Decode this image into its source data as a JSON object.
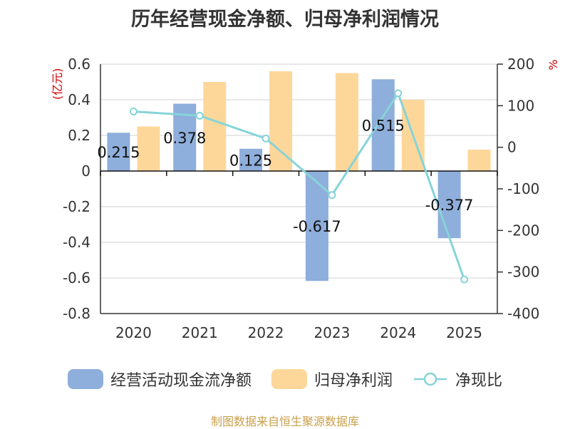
{
  "chart_data": {
    "type": "bar+line",
    "title": "历年经营现金净额、归母净利润情况",
    "categories": [
      "2020",
      "2021",
      "2022",
      "2023",
      "2024",
      "2025"
    ],
    "series": [
      {
        "name": "经营活动现金流净额",
        "type": "bar",
        "axis": "left",
        "color": "#8eaedb",
        "values": [
          0.215,
          0.378,
          0.125,
          -0.617,
          0.515,
          -0.377
        ],
        "labels": [
          "0.215",
          "0.378",
          "0.125",
          "-0.617",
          "0.515",
          "-0.377"
        ]
      },
      {
        "name": "归母净利润",
        "type": "bar",
        "axis": "left",
        "color": "#fdd79a",
        "values": [
          0.25,
          0.5,
          0.56,
          0.55,
          0.4,
          0.12
        ]
      },
      {
        "name": "净现比",
        "type": "line",
        "axis": "right",
        "color": "#86d4d8",
        "values": [
          86,
          76,
          21,
          -115,
          130,
          -318
        ]
      }
    ],
    "left_axis": {
      "unit": "(亿元)",
      "ylim": [
        -0.8,
        0.6
      ],
      "ticks": [
        "0.6",
        "0.4",
        "0.2",
        "0",
        "-0.2",
        "-0.4",
        "-0.6",
        "-0.8"
      ]
    },
    "right_axis": {
      "unit": "%",
      "ylim": [
        -400,
        200
      ],
      "ticks": [
        "200",
        "100",
        "0",
        "-100",
        "-200",
        "-300",
        "-400"
      ]
    },
    "grid": true,
    "legend": "bottom"
  },
  "legend": {
    "items": [
      {
        "label": "经营活动现金流净额"
      },
      {
        "label": "归母净利润"
      },
      {
        "label": "净现比"
      }
    ]
  },
  "footer": {
    "text": "制图数据来自恒生聚源数据库"
  }
}
